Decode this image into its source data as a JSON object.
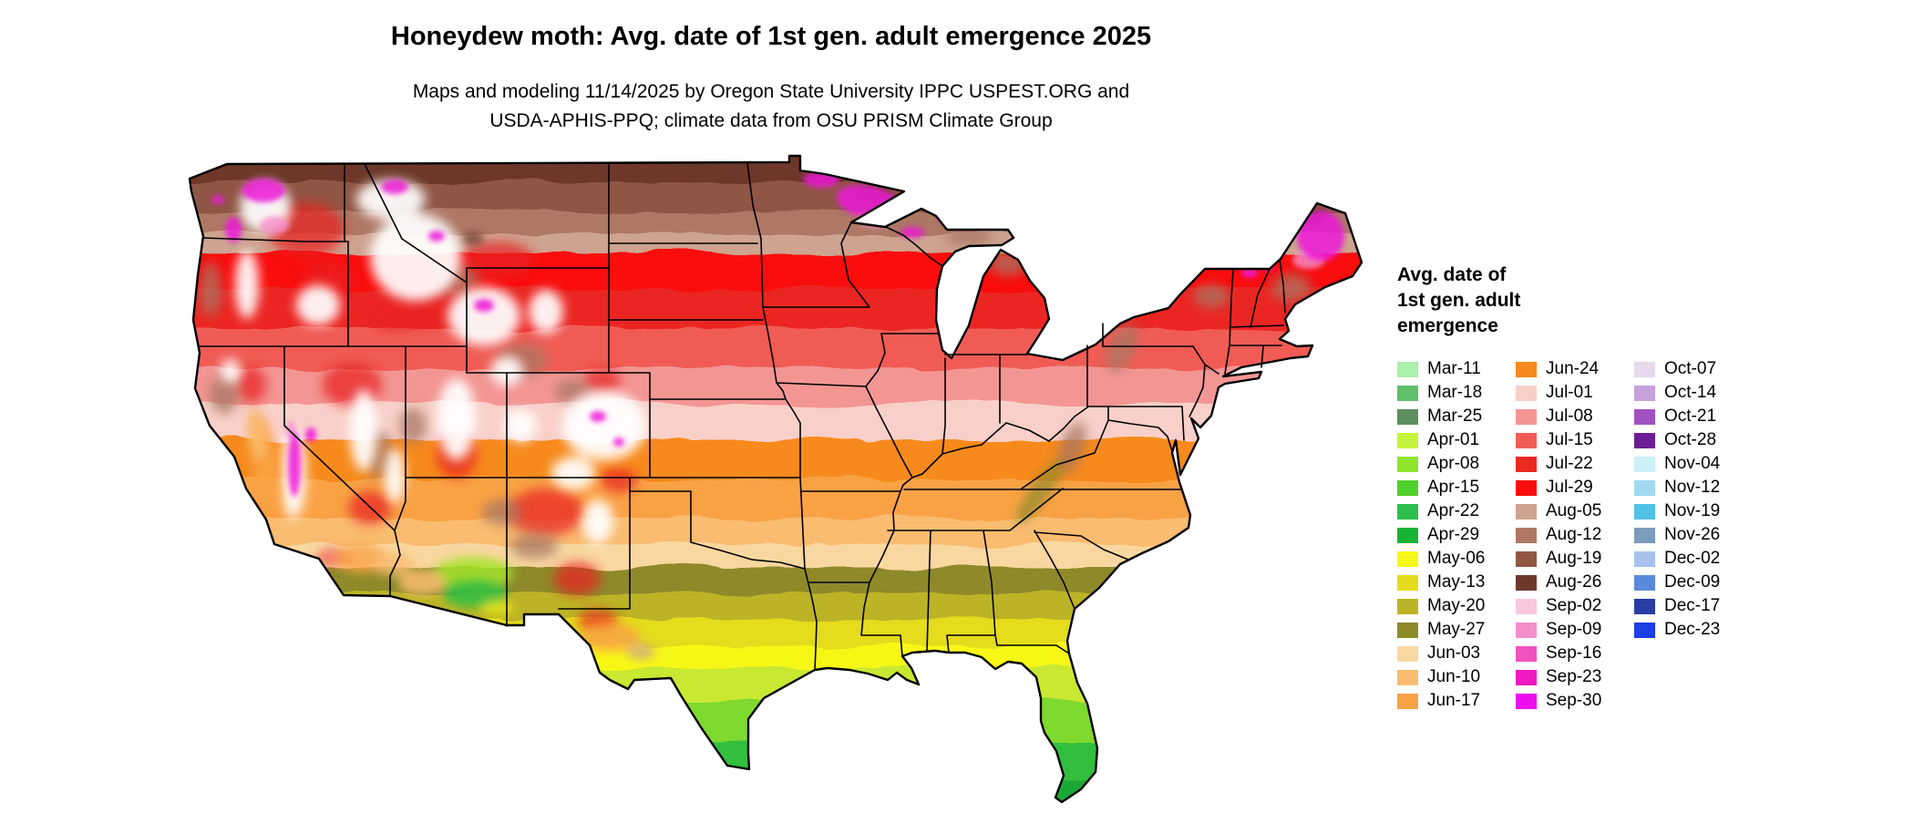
{
  "header": {
    "title": "Honeydew moth: Avg. date of 1st gen. adult emergence 2025",
    "subtitle_line1": "Maps and modeling 11/14/2025 by Oregon State University IPPC USPEST.ORG and",
    "subtitle_line2": "USDA-APHIS-PPQ; climate data from OSU PRISM Climate Group"
  },
  "legend": {
    "title_line1": "Avg. date of",
    "title_line2": "1st gen. adult",
    "title_line3": "emergence",
    "columns": [
      [
        {
          "label": "Mar-11",
          "color": "#A8EFA8"
        },
        {
          "label": "Mar-18",
          "color": "#5FBF6A"
        },
        {
          "label": "Mar-25",
          "color": "#5E8F62"
        },
        {
          "label": "Apr-01",
          "color": "#C4F43C"
        },
        {
          "label": "Apr-08",
          "color": "#8FE42E"
        },
        {
          "label": "Apr-15",
          "color": "#50D02C"
        },
        {
          "label": "Apr-22",
          "color": "#2EBE4D"
        },
        {
          "label": "Apr-29",
          "color": "#17B434"
        },
        {
          "label": "May-06",
          "color": "#F7F719"
        },
        {
          "label": "May-13",
          "color": "#E4DC1C"
        },
        {
          "label": "May-20",
          "color": "#BCB428"
        },
        {
          "label": "May-27",
          "color": "#8E8A2A"
        },
        {
          "label": "Jun-03",
          "color": "#F9D7A0"
        },
        {
          "label": "Jun-10",
          "color": "#F9BC70"
        },
        {
          "label": "Jun-17",
          "color": "#F9A245"
        }
      ],
      [
        {
          "label": "Jun-24",
          "color": "#F78A1E"
        },
        {
          "label": "Jul-01",
          "color": "#F9D0C9"
        },
        {
          "label": "Jul-08",
          "color": "#F39693"
        },
        {
          "label": "Jul-15",
          "color": "#F05C55"
        },
        {
          "label": "Jul-22",
          "color": "#EB2822"
        },
        {
          "label": "Jul-29",
          "color": "#F90D0D"
        },
        {
          "label": "Aug-05",
          "color": "#CEA38F"
        },
        {
          "label": "Aug-12",
          "color": "#AE7865"
        },
        {
          "label": "Aug-19",
          "color": "#905745"
        },
        {
          "label": "Aug-26",
          "color": "#6D382C"
        },
        {
          "label": "Sep-02",
          "color": "#F9C7DE"
        },
        {
          "label": "Sep-09",
          "color": "#F58FCC"
        },
        {
          "label": "Sep-16",
          "color": "#F152BE"
        },
        {
          "label": "Sep-23",
          "color": "#F01AC2"
        },
        {
          "label": "Sep-30",
          "color": "#ED0FED"
        }
      ],
      [
        {
          "label": "Oct-07",
          "color": "#E6DAEC"
        },
        {
          "label": "Oct-14",
          "color": "#C7A1DA"
        },
        {
          "label": "Oct-21",
          "color": "#A151C2"
        },
        {
          "label": "Oct-28",
          "color": "#6D1D94"
        },
        {
          "label": "Nov-04",
          "color": "#CDF0F9"
        },
        {
          "label": "Nov-12",
          "color": "#A1DAF0"
        },
        {
          "label": "Nov-19",
          "color": "#51C2E6"
        },
        {
          "label": "Nov-26",
          "color": "#7C9CBC"
        },
        {
          "label": "Dec-02",
          "color": "#A8C2EC"
        },
        {
          "label": "Dec-09",
          "color": "#5C8ADA"
        },
        {
          "label": "Dec-17",
          "color": "#2A3DA6"
        },
        {
          "label": "Dec-23",
          "color": "#1D3DE6"
        }
      ]
    ]
  }
}
